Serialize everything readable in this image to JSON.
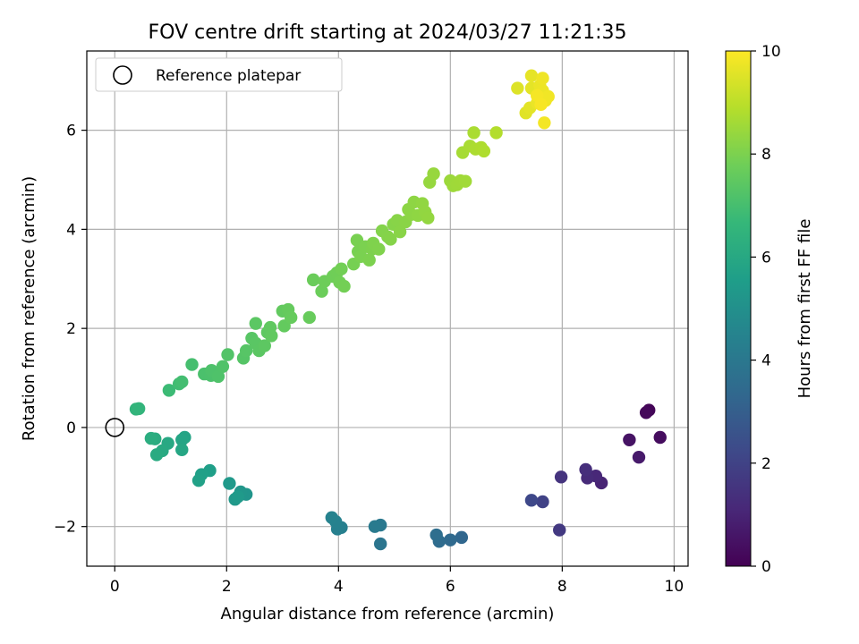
{
  "chart_data": {
    "type": "scatter",
    "title": "FOV centre drift starting at 2024/03/27 11:21:35",
    "xlabel": "Angular distance from reference (arcmin)",
    "ylabel": "Rotation from reference (arcmin)",
    "xlim": [
      -0.5,
      10.25
    ],
    "ylim": [
      -2.8,
      7.6
    ],
    "xticks": [
      0,
      2,
      4,
      6,
      8,
      10
    ],
    "yticks": [
      -2,
      0,
      2,
      4,
      6
    ],
    "grid": true,
    "legend": {
      "placement": "top-left",
      "entries": [
        {
          "label": "Reference platepar",
          "marker": "open-circle"
        }
      ]
    },
    "reference_point": {
      "x": 0,
      "y": 0
    },
    "colorbar": {
      "label": "Hours from first FF file",
      "range": [
        0,
        10
      ],
      "ticks": [
        0,
        2,
        4,
        6,
        8,
        10
      ],
      "colormap": "viridis",
      "stops": [
        "#440154",
        "#482878",
        "#3e4989",
        "#31688e",
        "#26828e",
        "#1f9e89",
        "#35b779",
        "#6ece58",
        "#b5de2b",
        "#fde725"
      ]
    },
    "points": [
      [
        9.55,
        0.35,
        0.1
      ],
      [
        9.5,
        0.3,
        0.2
      ],
      [
        9.75,
        -0.2,
        0.3
      ],
      [
        9.2,
        -0.25,
        0.5
      ],
      [
        9.37,
        -0.6,
        0.7
      ],
      [
        8.7,
        -1.12,
        1.0
      ],
      [
        8.6,
        -0.98,
        1.1
      ],
      [
        8.45,
        -1.02,
        1.2
      ],
      [
        8.42,
        -0.85,
        1.3
      ],
      [
        7.98,
        -1.0,
        1.5
      ],
      [
        7.95,
        -2.07,
        1.7
      ],
      [
        7.65,
        -1.5,
        2.0
      ],
      [
        7.45,
        -1.47,
        2.2
      ],
      [
        6.2,
        -2.22,
        3.3
      ],
      [
        6.0,
        -2.27,
        3.4
      ],
      [
        5.8,
        -2.3,
        3.5
      ],
      [
        5.75,
        -2.17,
        3.6
      ],
      [
        4.75,
        -2.35,
        3.9
      ],
      [
        4.75,
        -1.97,
        4.0
      ],
      [
        4.65,
        -2.0,
        4.1
      ],
      [
        4.05,
        -2.02,
        4.3
      ],
      [
        3.98,
        -2.05,
        4.35
      ],
      [
        3.95,
        -1.9,
        4.4
      ],
      [
        3.88,
        -1.82,
        4.45
      ],
      [
        2.35,
        -1.35,
        5.2
      ],
      [
        2.25,
        -1.3,
        5.25
      ],
      [
        2.15,
        -1.45,
        5.3
      ],
      [
        2.05,
        -1.13,
        5.35
      ],
      [
        2.2,
        -1.4,
        5.4
      ],
      [
        1.7,
        -0.87,
        5.6
      ],
      [
        1.55,
        -0.95,
        5.65
      ],
      [
        1.5,
        -1.07,
        5.7
      ],
      [
        1.25,
        -0.2,
        5.8
      ],
      [
        1.2,
        -0.25,
        5.85
      ],
      [
        1.2,
        -0.45,
        5.9
      ],
      [
        0.95,
        -0.32,
        6.0
      ],
      [
        0.85,
        -0.47,
        6.05
      ],
      [
        0.75,
        -0.55,
        6.1
      ],
      [
        0.72,
        -0.23,
        6.15
      ],
      [
        0.65,
        -0.22,
        6.2
      ],
      [
        0.38,
        0.37,
        6.5
      ],
      [
        0.43,
        0.38,
        6.55
      ],
      [
        0.97,
        0.75,
        6.8
      ],
      [
        1.15,
        0.88,
        6.9
      ],
      [
        1.2,
        0.92,
        6.95
      ],
      [
        1.38,
        1.27,
        7.0
      ],
      [
        1.6,
        1.08,
        7.1
      ],
      [
        1.72,
        1.05,
        7.12
      ],
      [
        1.73,
        1.15,
        7.15
      ],
      [
        1.85,
        1.03,
        7.18
      ],
      [
        1.93,
        1.23,
        7.2
      ],
      [
        2.02,
        1.47,
        7.25
      ],
      [
        2.3,
        1.4,
        7.3
      ],
      [
        2.35,
        1.55,
        7.32
      ],
      [
        2.45,
        1.8,
        7.35
      ],
      [
        2.52,
        1.7,
        7.38
      ],
      [
        2.58,
        1.55,
        7.4
      ],
      [
        2.52,
        2.1,
        7.42
      ],
      [
        2.68,
        1.65,
        7.45
      ],
      [
        2.73,
        1.92,
        7.47
      ],
      [
        2.78,
        2.02,
        7.5
      ],
      [
        2.8,
        1.85,
        7.52
      ],
      [
        3.0,
        2.35,
        7.55
      ],
      [
        3.03,
        2.05,
        7.57
      ],
      [
        3.1,
        2.38,
        7.6
      ],
      [
        3.15,
        2.22,
        7.62
      ],
      [
        3.48,
        2.22,
        7.65
      ],
      [
        3.55,
        2.98,
        7.7
      ],
      [
        3.7,
        2.75,
        7.72
      ],
      [
        3.75,
        2.95,
        7.75
      ],
      [
        3.9,
        3.05,
        7.78
      ],
      [
        3.97,
        3.12,
        7.8
      ],
      [
        4.02,
        2.93,
        7.82
      ],
      [
        4.05,
        3.2,
        7.84
      ],
      [
        4.1,
        2.85,
        7.86
      ],
      [
        4.27,
        3.3,
        7.9
      ],
      [
        4.35,
        3.55,
        7.92
      ],
      [
        4.33,
        3.78,
        7.94
      ],
      [
        4.4,
        3.45,
        7.96
      ],
      [
        4.48,
        3.65,
        7.98
      ],
      [
        4.55,
        3.38,
        8.0
      ],
      [
        4.6,
        3.6,
        8.02
      ],
      [
        4.62,
        3.72,
        8.04
      ],
      [
        4.72,
        3.6,
        8.06
      ],
      [
        4.78,
        3.97,
        8.1
      ],
      [
        4.88,
        3.85,
        8.12
      ],
      [
        4.93,
        3.8,
        8.14
      ],
      [
        4.98,
        4.1,
        8.16
      ],
      [
        5.05,
        4.18,
        8.18
      ],
      [
        5.1,
        3.95,
        8.2
      ],
      [
        5.2,
        4.15,
        8.22
      ],
      [
        5.25,
        4.4,
        8.24
      ],
      [
        5.3,
        4.3,
        8.26
      ],
      [
        5.35,
        4.55,
        8.28
      ],
      [
        5.42,
        4.28,
        8.3
      ],
      [
        5.5,
        4.52,
        8.32
      ],
      [
        5.55,
        4.35,
        8.34
      ],
      [
        5.6,
        4.23,
        8.36
      ],
      [
        5.63,
        4.95,
        8.4
      ],
      [
        5.7,
        5.12,
        8.42
      ],
      [
        6.0,
        4.98,
        8.5
      ],
      [
        6.05,
        4.88,
        8.52
      ],
      [
        6.12,
        4.9,
        8.54
      ],
      [
        6.18,
        4.98,
        8.56
      ],
      [
        6.27,
        4.97,
        8.58
      ],
      [
        6.22,
        5.55,
        8.65
      ],
      [
        6.35,
        5.68,
        8.7
      ],
      [
        6.42,
        5.95,
        8.72
      ],
      [
        6.45,
        5.62,
        8.75
      ],
      [
        6.55,
        5.65,
        8.78
      ],
      [
        6.6,
        5.58,
        8.8
      ],
      [
        6.82,
        5.95,
        8.85
      ],
      [
        7.2,
        6.85,
        9.5
      ],
      [
        7.35,
        6.35,
        9.55
      ],
      [
        7.42,
        6.45,
        9.6
      ],
      [
        7.45,
        6.85,
        9.62
      ],
      [
        7.45,
        7.1,
        9.65
      ],
      [
        7.55,
        6.55,
        9.7
      ],
      [
        7.6,
        6.9,
        9.72
      ],
      [
        7.65,
        6.8,
        9.75
      ],
      [
        7.65,
        7.05,
        9.78
      ],
      [
        7.7,
        6.6,
        9.8
      ],
      [
        7.75,
        6.68,
        9.82
      ],
      [
        7.68,
        6.15,
        9.85
      ],
      [
        7.55,
        6.7,
        9.88
      ],
      [
        7.62,
        6.52,
        9.9
      ]
    ]
  }
}
